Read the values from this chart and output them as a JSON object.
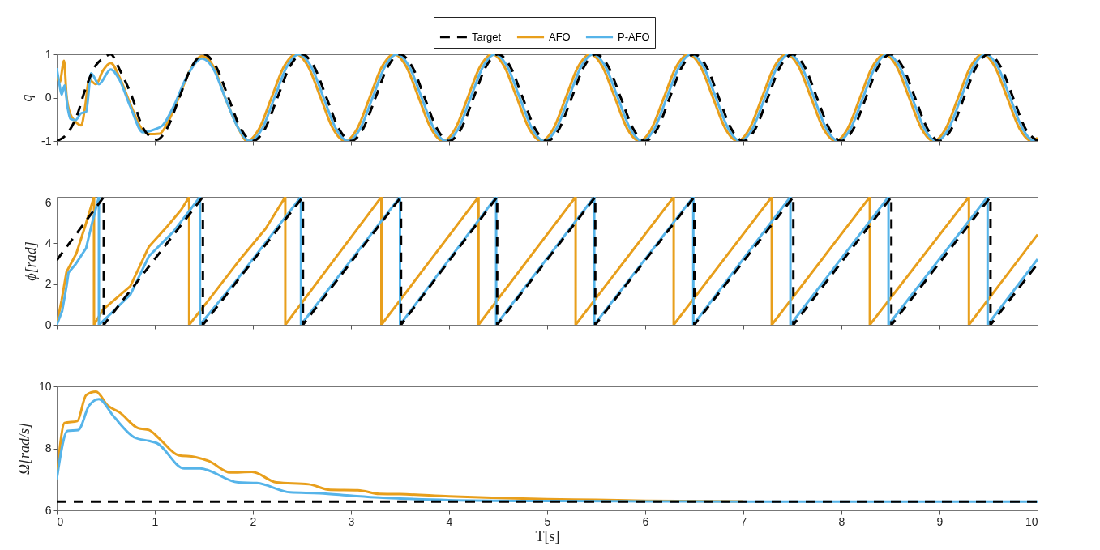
{
  "chart_data": [
    {
      "type": "line",
      "ylabel": "q",
      "xlim": [
        0,
        10
      ],
      "xticks": [
        0,
        1,
        2,
        3,
        4,
        5,
        6,
        7,
        8,
        9,
        10
      ],
      "ylim": [
        -1,
        1
      ],
      "yticks": [
        {
          "value": -1,
          "label": "-1"
        },
        {
          "value": 0,
          "label": "0"
        },
        {
          "value": 1,
          "label": "1"
        }
      ],
      "tick_labels": "y",
      "legend": "top",
      "series": [
        {
          "name": "Target",
          "color": "#000000",
          "line_style": "dashed",
          "x": [
            0,
            0.1,
            0.2,
            0.3,
            0.4,
            0.47,
            0.55,
            0.64,
            0.77,
            0.88,
            1.02,
            1.125,
            1.25,
            1.375,
            1.5,
            1.625,
            1.75,
            1.875,
            2,
            2.125,
            2.25,
            2.375,
            2.5,
            2.625,
            2.75,
            2.875,
            3,
            3.125,
            3.25,
            3.375,
            3.5,
            3.625,
            3.75,
            3.875,
            4,
            4.125,
            4.25,
            4.375,
            4.5,
            4.625,
            4.75,
            4.875,
            5,
            5.125,
            5.25,
            5.375,
            5.5,
            5.625,
            5.75,
            5.875,
            6,
            6.125,
            6.25,
            6.375,
            6.5,
            6.625,
            6.75,
            6.875,
            7,
            7.125,
            7.25,
            7.375,
            7.5,
            7.625,
            7.75,
            7.875,
            8,
            8.125,
            8.25,
            8.375,
            8.5,
            8.625,
            8.75,
            8.875,
            9,
            9.125,
            9.25,
            9.375,
            9.5,
            9.625,
            9.75,
            9.875,
            10
          ],
          "values": [
            -1,
            -0.85,
            -0.45,
            0.25,
            0.75,
            0.9,
            1,
            0.65,
            0,
            -0.7,
            -0.97,
            -0.71,
            0,
            0.71,
            1,
            0.71,
            0,
            -0.71,
            -1,
            -0.71,
            0,
            0.71,
            1,
            0.71,
            0,
            -0.71,
            -1,
            -0.71,
            0,
            0.71,
            1,
            0.71,
            0,
            -0.71,
            -1,
            -0.71,
            0,
            0.71,
            1,
            0.71,
            0,
            -0.71,
            -1,
            -0.71,
            0,
            0.71,
            1,
            0.71,
            0,
            -0.71,
            -1,
            -0.71,
            0,
            0.71,
            1,
            0.71,
            0,
            -0.71,
            -1,
            -0.71,
            0,
            0.71,
            1,
            0.71,
            0,
            -0.71,
            -1,
            -0.71,
            0,
            0.71,
            1,
            0.71,
            0,
            -0.71,
            -1,
            -0.71,
            0,
            0.71,
            1,
            0.71,
            0,
            -0.71,
            -1
          ]
        },
        {
          "name": "AFO",
          "color": "#e89f1c",
          "line_style": "solid",
          "x": [
            0,
            0.03,
            0.075,
            0.1,
            0.14,
            0.19,
            0.25,
            0.29,
            0.33,
            0.4,
            0.47,
            0.55,
            0.64,
            0.75,
            0.86,
            0.94,
            1.05,
            1.13,
            1.24,
            1.35,
            1.48,
            1.6,
            1.71,
            1.85,
            1.94,
            2.065,
            2.19,
            2.315,
            2.44,
            2.565,
            2.69,
            2.815,
            2.94,
            3.065,
            3.19,
            3.315,
            3.44,
            3.565,
            3.69,
            3.815,
            3.94,
            4.065,
            4.19,
            4.315,
            4.44,
            4.565,
            4.69,
            4.815,
            4.94,
            5.065,
            5.19,
            5.315,
            5.44,
            5.565,
            5.69,
            5.815,
            5.94,
            6.065,
            6.19,
            6.315,
            6.44,
            6.565,
            6.69,
            6.815,
            6.94,
            7.065,
            7.19,
            7.315,
            7.44,
            7.565,
            7.69,
            7.815,
            7.94,
            8.065,
            8.19,
            8.315,
            8.44,
            8.565,
            8.69,
            8.815,
            8.94,
            9.065,
            9.19,
            9.315,
            9.44,
            9.565,
            9.69,
            9.815,
            9.94,
            10
          ],
          "values": [
            0.5,
            0.35,
            0.85,
            0.04,
            -0.39,
            -0.55,
            -0.64,
            -0.2,
            0.41,
            0.31,
            0.62,
            0.8,
            0.47,
            -0.15,
            -0.7,
            -0.84,
            -0.83,
            -0.58,
            -0.02,
            0.59,
            0.96,
            0.71,
            0.04,
            -0.7,
            -1,
            -0.71,
            0,
            0.71,
            1,
            0.71,
            0,
            -0.71,
            -1,
            -0.71,
            0,
            0.71,
            1,
            0.71,
            0,
            -0.71,
            -1,
            -0.71,
            0,
            0.71,
            1,
            0.71,
            0,
            -0.71,
            -1,
            -0.71,
            0,
            0.71,
            1,
            0.71,
            0,
            -0.71,
            -1,
            -0.71,
            0,
            0.71,
            1,
            0.71,
            0,
            -0.71,
            -1,
            -0.71,
            0,
            0.71,
            1,
            0.71,
            0,
            -0.71,
            -1,
            -0.71,
            0,
            0.71,
            1,
            0.71,
            0,
            -0.71,
            -1,
            -0.71,
            0,
            0.71,
            1,
            0.71,
            0,
            -0.71,
            -1,
            -0.93
          ]
        },
        {
          "name": "P-AFO",
          "color": "#56b4e9",
          "line_style": "solid",
          "x": [
            0,
            0.03,
            0.05,
            0.08,
            0.11,
            0.14,
            0.19,
            0.25,
            0.3,
            0.35,
            0.43,
            0.55,
            0.64,
            0.75,
            0.88,
            0.99,
            1.08,
            1.19,
            1.33,
            1.48,
            1.6,
            1.71,
            1.85,
            1.97,
            2.095,
            2.22,
            2.345,
            2.47,
            2.595,
            2.72,
            2.845,
            2.97,
            3.095,
            3.22,
            3.345,
            3.47,
            3.595,
            3.72,
            3.845,
            3.97,
            4.095,
            4.22,
            4.345,
            4.47,
            4.595,
            4.72,
            4.845,
            4.97,
            5.095,
            5.22,
            5.345,
            5.47,
            5.595,
            5.72,
            5.845,
            5.97,
            6.095,
            6.22,
            6.345,
            6.47,
            6.595,
            6.72,
            6.845,
            6.97,
            7.095,
            7.22,
            7.345,
            7.47,
            7.595,
            7.72,
            7.845,
            7.97,
            8.095,
            8.22,
            8.345,
            8.47,
            8.595,
            8.72,
            8.845,
            8.97,
            9.095,
            9.22,
            9.345,
            9.47,
            9.595,
            9.72,
            9.845,
            9.97,
            10
          ],
          "values": [
            0.68,
            0.28,
            0.07,
            0.28,
            -0.21,
            -0.49,
            -0.52,
            -0.36,
            -0.33,
            0.56,
            0.31,
            0.65,
            0.41,
            -0.21,
            -0.8,
            -0.74,
            -0.64,
            -0.21,
            0.5,
            0.9,
            0.65,
            0.04,
            -0.7,
            -1,
            -0.71,
            0,
            0.71,
            1,
            0.71,
            0,
            -0.71,
            -1,
            -0.71,
            0,
            0.71,
            1,
            0.71,
            0,
            -0.71,
            -1,
            -0.71,
            0,
            0.71,
            1,
            0.71,
            0,
            -0.71,
            -1,
            -0.71,
            0,
            0.71,
            1,
            0.71,
            0,
            -0.71,
            -1,
            -0.71,
            0,
            0.71,
            1,
            0.71,
            0,
            -0.71,
            -1,
            -0.71,
            0,
            0.71,
            1,
            0.71,
            0,
            -0.71,
            -1,
            -0.71,
            0,
            0.71,
            1,
            0.71,
            0,
            -0.71,
            -1,
            -0.71,
            0,
            0.71,
            1,
            0.71,
            0,
            -0.71,
            -1,
            -0.98
          ]
        }
      ]
    },
    {
      "type": "line",
      "ylabel": "ϕ[rad]",
      "xlim": [
        0,
        10
      ],
      "xticks": [
        0,
        1,
        2,
        3,
        4,
        5,
        6,
        7,
        8,
        9,
        10
      ],
      "ylim": [
        0,
        6.2832
      ],
      "yticks": [
        0,
        2,
        4,
        6
      ],
      "tick_labels": "y",
      "series": [
        {
          "color": "#000000",
          "line_style": "dashed",
          "x": [
            0,
            0.48,
            0.48,
            1.49,
            1.49,
            2.51,
            2.51,
            3.51,
            3.51,
            4.49,
            4.49,
            5.49,
            5.49,
            6.5,
            6.5,
            7.51,
            7.51,
            8.51,
            8.51,
            9.52,
            9.52,
            10
          ],
          "values": [
            3.17,
            6.28,
            0,
            6.28,
            0,
            6.28,
            0,
            6.28,
            0,
            6.28,
            0,
            6.28,
            0,
            6.28,
            0,
            6.28,
            0,
            6.28,
            0,
            6.28,
            0,
            3.0
          ]
        },
        {
          "color": "#e89f1c",
          "line_style": "solid",
          "x": [
            0,
            0.05,
            0.1,
            0.2,
            0.3,
            0.38,
            0.38,
            0.47,
            0.75,
            0.94,
            1.13,
            1.27,
            1.35,
            1.35,
            1.57,
            1.85,
            2.13,
            2.33,
            2.33,
            3.31,
            3.31,
            4.3,
            4.3,
            5.29,
            5.29,
            6.29,
            6.29,
            7.29,
            7.29,
            8.29,
            8.29,
            9.3,
            9.3,
            10
          ],
          "values": [
            0,
            1.2,
            2.6,
            3.5,
            5.0,
            6.28,
            0,
            0.74,
            1.89,
            3.84,
            4.85,
            5.66,
            6.28,
            0,
            1.35,
            3.1,
            4.72,
            6.28,
            0,
            6.28,
            0,
            6.28,
            0,
            6.28,
            0,
            6.28,
            0,
            6.28,
            0,
            6.28,
            0,
            6.28,
            0,
            4.43
          ]
        },
        {
          "color": "#56b4e9",
          "line_style": "solid",
          "x": [
            0,
            0.055,
            0.1,
            0.12,
            0.19,
            0.3,
            0.36,
            0.43,
            0.43,
            0.55,
            0.75,
            0.94,
            1.19,
            1.46,
            1.46,
            1.85,
            2.13,
            2.49,
            2.49,
            3.5,
            3.5,
            4.48,
            4.48,
            5.48,
            5.48,
            6.49,
            6.49,
            7.48,
            7.48,
            8.48,
            8.48,
            9.49,
            9.49,
            10
          ],
          "values": [
            0,
            0.67,
            1.9,
            2.56,
            2.96,
            3.77,
            4.99,
            6.28,
            0,
            0.54,
            1.48,
            3.37,
            4.58,
            6.28,
            0,
            2.29,
            4.04,
            6.28,
            0,
            6.28,
            0,
            6.28,
            0,
            6.28,
            0,
            6.28,
            0,
            6.28,
            0,
            6.28,
            0,
            6.28,
            0,
            3.22
          ]
        }
      ]
    },
    {
      "type": "line",
      "xlabel": "T[s]",
      "ylabel": "Ω[rad/s]",
      "xlim": [
        0,
        10
      ],
      "xticks": [
        0,
        1,
        2,
        3,
        4,
        5,
        6,
        7,
        8,
        9,
        10
      ],
      "ylim": [
        6,
        10
      ],
      "yticks": [
        6,
        8,
        10
      ],
      "series": [
        {
          "color": "#000000",
          "line_style": "dashed",
          "x": [
            0,
            10
          ],
          "values": [
            6.28,
            6.28
          ]
        },
        {
          "color": "#e89f1c",
          "line_style": "solid",
          "x": [
            0,
            0.08,
            0.21,
            0.3,
            0.4,
            0.52,
            0.64,
            0.83,
            0.94,
            1.05,
            1.24,
            1.41,
            1.55,
            1.77,
            1.99,
            2.24,
            2.57,
            2.79,
            3.07,
            3.29,
            3.5,
            4,
            4.5,
            5,
            5.5,
            6,
            7
          ],
          "values": [
            7.0,
            8.82,
            8.88,
            9.72,
            9.83,
            9.38,
            9.16,
            8.65,
            8.59,
            8.3,
            7.78,
            7.72,
            7.59,
            7.22,
            7.24,
            6.9,
            6.84,
            6.66,
            6.65,
            6.53,
            6.52,
            6.45,
            6.4,
            6.36,
            6.34,
            6.31,
            6.29
          ]
        },
        {
          "color": "#56b4e9",
          "line_style": "solid",
          "x": [
            0,
            0.11,
            0.22,
            0.33,
            0.43,
            0.58,
            0.8,
            0.94,
            1.02,
            1.3,
            1.46,
            1.85,
            2.04,
            2.38,
            2.68,
            3.01,
            3.29,
            3.5,
            4,
            5,
            6,
            7,
            10
          ],
          "values": [
            7.0,
            8.56,
            8.59,
            9.38,
            9.59,
            9.03,
            8.34,
            8.24,
            8.17,
            7.35,
            7.35,
            6.9,
            6.88,
            6.58,
            6.55,
            6.47,
            6.41,
            6.38,
            6.33,
            6.3,
            6.29,
            6.28,
            6.28
          ]
        }
      ]
    }
  ]
}
